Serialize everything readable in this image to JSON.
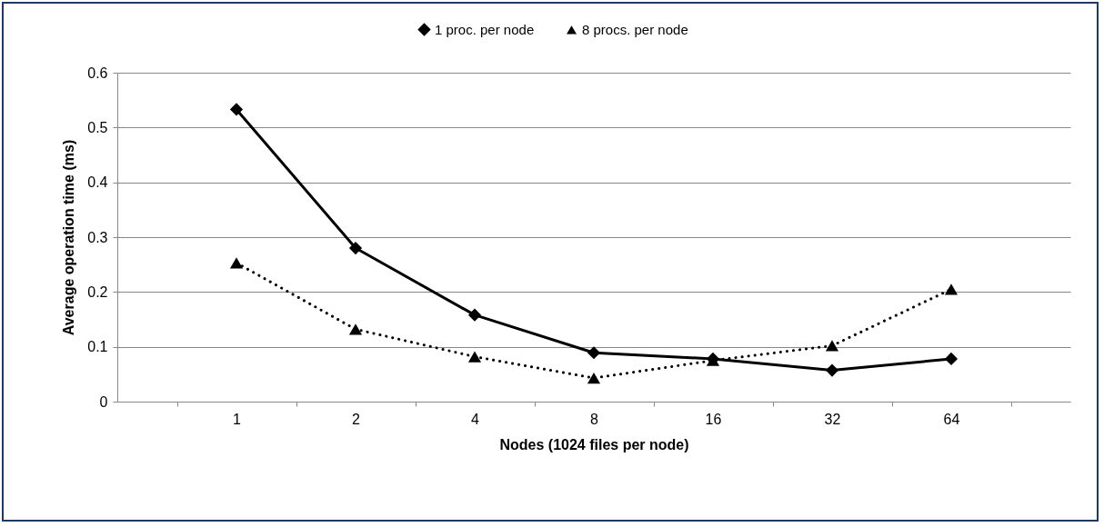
{
  "chart_data": {
    "type": "line",
    "xlabel": "Nodes (1024 files per node)",
    "ylabel": "Average operation time (ms)",
    "categories": [
      "1",
      "2",
      "4",
      "8",
      "16",
      "32",
      "64"
    ],
    "series": [
      {
        "name": "1 proc. per node",
        "color": "#000000",
        "marker": "diamond",
        "line_style": "solid",
        "values": [
          0.533,
          0.28,
          0.158,
          0.089,
          0.078,
          0.057,
          0.078
        ]
      },
      {
        "name": "8 procs. per node",
        "color": "#000000",
        "marker": "triangle",
        "line_style": "dotted",
        "values": [
          0.253,
          0.132,
          0.082,
          0.043,
          0.075,
          0.102,
          0.205
        ]
      }
    ],
    "ylim": [
      0,
      0.6
    ],
    "yticks": [
      0,
      0.1,
      0.2,
      0.3,
      0.4,
      0.5,
      0.6
    ],
    "grid": "y",
    "legend": "top"
  }
}
